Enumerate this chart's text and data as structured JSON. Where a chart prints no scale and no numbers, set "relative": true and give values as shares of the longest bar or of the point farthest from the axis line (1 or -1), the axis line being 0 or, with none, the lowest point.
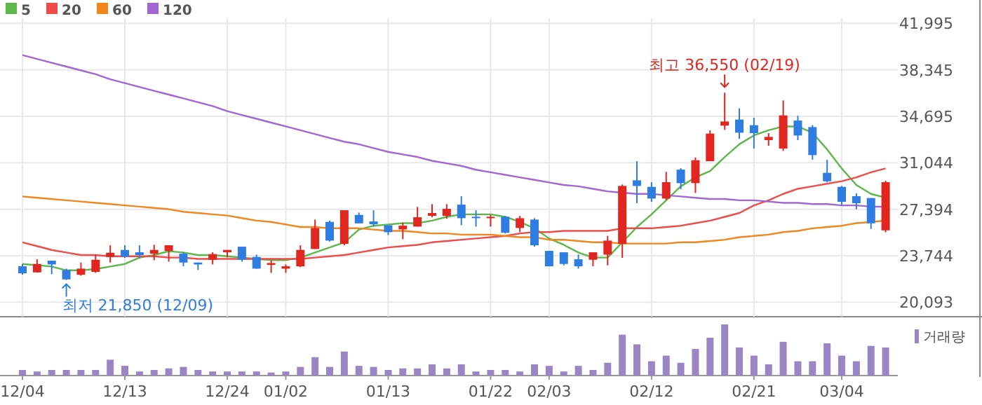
{
  "chart_data": [
    {
      "type": "candlestick",
      "categories": [
        "12/04",
        null,
        null,
        null,
        null,
        null,
        null,
        "12/13",
        null,
        null,
        null,
        null,
        null,
        null,
        "12/24",
        null,
        null,
        null,
        "01/02",
        null,
        null,
        null,
        null,
        null,
        null,
        "01/13",
        null,
        null,
        null,
        null,
        null,
        null,
        "01/22",
        null,
        null,
        null,
        "02/03",
        null,
        null,
        null,
        null,
        null,
        null,
        "02/12",
        null,
        null,
        null,
        null,
        null,
        null,
        "02/21",
        null,
        null,
        null,
        null,
        null,
        "03/04",
        null,
        null,
        null
      ],
      "ohlc": [
        [
          22916,
          23100,
          22255,
          22365
        ],
        [
          22438,
          23467,
          22438,
          23100
        ],
        [
          23357,
          23357,
          22292,
          23063
        ],
        [
          22622,
          22732,
          21850,
          21889
        ],
        [
          22250,
          23210,
          22182,
          22732
        ],
        [
          22475,
          23834,
          22402,
          23430
        ],
        [
          23650,
          24567,
          23210,
          23980
        ],
        [
          24200,
          24567,
          23577,
          23687
        ],
        [
          24017,
          24567,
          23540,
          23797
        ],
        [
          23907,
          24604,
          23394,
          24200
        ],
        [
          24127,
          24567,
          23283,
          24567
        ],
        [
          23907,
          24017,
          22916,
          23210
        ],
        [
          23210,
          23210,
          22622,
          23063
        ],
        [
          23430,
          24017,
          23063,
          23870
        ],
        [
          24017,
          24200,
          23614,
          24200
        ],
        [
          24457,
          24457,
          23283,
          23430
        ],
        [
          23650,
          23834,
          22732,
          22732
        ],
        [
          23026,
          23357,
          22402,
          23173
        ],
        [
          22732,
          23063,
          22402,
          22916
        ],
        [
          22916,
          24567,
          22843,
          24200
        ],
        [
          24274,
          26586,
          24274,
          25925
        ],
        [
          26402,
          26500,
          24860,
          24934
        ],
        [
          24677,
          27318,
          24567,
          27318
        ],
        [
          26952,
          27135,
          26291,
          26291
        ],
        [
          26438,
          27318,
          26035,
          26218
        ],
        [
          26145,
          26145,
          25375,
          25595
        ],
        [
          25815,
          26328,
          25045,
          26108
        ],
        [
          26035,
          27576,
          26035,
          26768
        ],
        [
          26878,
          27796,
          26768,
          27099
        ],
        [
          26878,
          27796,
          26658,
          27429
        ],
        [
          27759,
          28420,
          26145,
          26695
        ],
        [
          26805,
          27318,
          26035,
          26695
        ],
        [
          26695,
          26952,
          26035,
          26805
        ],
        [
          26805,
          26878,
          25485,
          25558
        ],
        [
          25925,
          26878,
          25595,
          26695
        ],
        [
          26585,
          26695,
          24457,
          24567
        ],
        [
          24127,
          24127,
          22916,
          22916
        ],
        [
          24017,
          24017,
          22990,
          23100
        ],
        [
          23467,
          23834,
          22732,
          22916
        ],
        [
          23430,
          24017,
          22916,
          24017
        ],
        [
          23834,
          25302,
          22990,
          24934
        ],
        [
          24677,
          29337,
          23577,
          29227
        ],
        [
          29668,
          31171,
          27869,
          29227
        ],
        [
          29154,
          29521,
          27979,
          28237
        ],
        [
          28237,
          30328,
          28126,
          29521
        ],
        [
          30511,
          30621,
          28971,
          29448
        ],
        [
          29448,
          31465,
          28677,
          31245
        ],
        [
          31171,
          33593,
          31171,
          33336
        ],
        [
          33960,
          36550,
          33630,
          34290
        ],
        [
          34437,
          35317,
          32933,
          33410
        ],
        [
          33996,
          34584,
          32162,
          33373
        ],
        [
          32823,
          33373,
          32383,
          33079
        ],
        [
          32162,
          35941,
          31978,
          34767
        ],
        [
          34364,
          34731,
          32823,
          33190
        ],
        [
          33850,
          33996,
          31281,
          31648
        ],
        [
          30254,
          31281,
          29521,
          29594
        ],
        [
          29154,
          29227,
          27686,
          27979
        ],
        [
          28420,
          28640,
          27392,
          27869
        ],
        [
          28273,
          28273,
          25852,
          26291
        ],
        [
          25742,
          29631,
          25595,
          29521
        ]
      ],
      "colors": [
        "#2f7de1",
        "#e0261f",
        "#2f7de1",
        "#2f7de1",
        "#e0261f",
        "#e0261f",
        "#e0261f",
        "#2f7de1",
        "#2f7de1",
        "#e0261f",
        "#e0261f",
        "#2f7de1",
        "#2f7de1",
        "#e0261f",
        "#e0261f",
        "#2f7de1",
        "#2f7de1",
        "#e0261f",
        "#e0261f",
        "#e0261f",
        "#e0261f",
        "#2f7de1",
        "#e0261f",
        "#2f7de1",
        "#2f7de1",
        "#2f7de1",
        "#e0261f",
        "#e0261f",
        "#e0261f",
        "#e0261f",
        "#2f7de1",
        "#2f7de1",
        "#e0261f",
        "#2f7de1",
        "#e0261f",
        "#2f7de1",
        "#2f7de1",
        "#2f7de1",
        "#2f7de1",
        "#e0261f",
        "#e0261f",
        "#e0261f",
        "#2f7de1",
        "#2f7de1",
        "#e0261f",
        "#2f7de1",
        "#e0261f",
        "#e0261f",
        "#e0261f",
        "#2f7de1",
        "#2f7de1",
        "#e0261f",
        "#e0261f",
        "#2f7de1",
        "#2f7de1",
        "#2f7de1",
        "#2f7de1",
        "#2f7de1",
        "#2f7de1",
        "#e0261f"
      ],
      "series": [
        {
          "type": "line",
          "name": "5",
          "color": "#5cb84a",
          "values": [
            23100,
            23000,
            22900,
            22600,
            22600,
            22700,
            22900,
            23100,
            23600,
            23800,
            24100,
            24000,
            23800,
            23800,
            23700,
            23600,
            23500,
            23400,
            23400,
            23600,
            24000,
            24400,
            24800,
            25800,
            26100,
            26200,
            26300,
            26300,
            26500,
            26800,
            27000,
            27000,
            27000,
            26800,
            26400,
            25900,
            25100,
            24600,
            24000,
            23600,
            23600,
            24800,
            26000,
            27000,
            28100,
            29200,
            29900,
            30400,
            31500,
            32500,
            33200,
            33600,
            33900,
            33900,
            33400,
            32100,
            30600,
            29300,
            28600,
            28300
          ]
        },
        {
          "type": "line",
          "name": "20",
          "color": "#ef4b4b",
          "values": [
            24800,
            24500,
            24200,
            24000,
            23800,
            23800,
            23700,
            23700,
            23700,
            23700,
            23600,
            23600,
            23500,
            23500,
            23500,
            23500,
            23500,
            23500,
            23500,
            23500,
            23600,
            23700,
            23800,
            24000,
            24200,
            24400,
            24500,
            24600,
            24800,
            24900,
            25000,
            25100,
            25200,
            25300,
            25500,
            25600,
            25600,
            25700,
            25700,
            25700,
            25700,
            25900,
            25900,
            25900,
            26000,
            26100,
            26300,
            26500,
            26800,
            27100,
            27700,
            28100,
            28600,
            29000,
            29200,
            29400,
            29600,
            29900,
            30300,
            30600
          ]
        },
        {
          "type": "line",
          "name": "60",
          "color": "#f0861c",
          "values": [
            28400,
            28300,
            28200,
            28100,
            28000,
            27900,
            27800,
            27700,
            27600,
            27500,
            27400,
            27200,
            27100,
            27000,
            26900,
            26700,
            26500,
            26400,
            26200,
            26000,
            26000,
            25900,
            25900,
            25900,
            25800,
            25700,
            25700,
            25600,
            25500,
            25500,
            25400,
            25400,
            25400,
            25300,
            25200,
            25200,
            25000,
            25000,
            24900,
            24800,
            24800,
            24700,
            24700,
            24700,
            24700,
            24800,
            24800,
            24900,
            25000,
            25200,
            25300,
            25400,
            25600,
            25700,
            25900,
            26000,
            26100,
            26300,
            26400,
            26500
          ]
        },
        {
          "type": "line",
          "name": "120",
          "color": "#a066d3",
          "values": [
            39500,
            39200,
            38900,
            38600,
            38300,
            38000,
            37600,
            37300,
            37000,
            36700,
            36400,
            36100,
            35800,
            35500,
            35100,
            34800,
            34500,
            34200,
            33900,
            33600,
            33300,
            33000,
            32700,
            32500,
            32200,
            31900,
            31700,
            31500,
            31200,
            31000,
            30800,
            30500,
            30300,
            30100,
            29900,
            29700,
            29500,
            29300,
            29200,
            29000,
            28800,
            28700,
            28600,
            28600,
            28500,
            28400,
            28300,
            28200,
            28200,
            28100,
            28100,
            28000,
            27900,
            27900,
            27800,
            27800,
            27700,
            27700,
            27600,
            27600
          ]
        }
      ],
      "ylim": [
        19100,
        42200
      ],
      "yticks": [
        {
          "value": 20093,
          "label": "20,093"
        },
        {
          "value": 23744,
          "label": "23,744"
        },
        {
          "value": 27394,
          "label": "27,394"
        },
        {
          "value": 31044,
          "label": "31,044"
        },
        {
          "value": 34695,
          "label": "34,695"
        },
        {
          "value": 38345,
          "label": "38,345"
        },
        {
          "value": 41995,
          "label": "41,995"
        }
      ],
      "grid": true,
      "legend": "top left",
      "annotations": [
        "최고 36,550 (02/19)",
        "최저 21,850 (12/09)"
      ]
    },
    {
      "type": "bar",
      "relative": true,
      "categories": [
        null,
        null,
        null,
        null,
        null,
        null,
        null,
        null,
        null,
        null,
        null,
        null,
        null,
        null,
        null,
        null,
        null,
        null,
        null,
        null,
        null,
        null,
        null,
        null,
        null,
        null,
        null,
        null,
        null,
        null,
        null,
        null,
        null,
        null,
        null,
        null,
        null,
        null,
        null,
        null,
        null,
        null,
        null,
        null,
        null,
        null,
        null,
        null,
        null,
        null,
        null,
        null,
        null,
        null,
        null,
        null,
        null,
        null,
        null,
        null
      ],
      "series": [
        {
          "name": "거래량",
          "color": "#9b86c5",
          "values": [
            0.11,
            0.08,
            0.11,
            0.11,
            0.11,
            0.11,
            0.31,
            0.19,
            0.08,
            0.11,
            0.14,
            0.17,
            0.11,
            0.08,
            0.08,
            0.08,
            0.08,
            0.06,
            0.08,
            0.17,
            0.36,
            0.17,
            0.47,
            0.19,
            0.17,
            0.11,
            0.14,
            0.14,
            0.22,
            0.14,
            0.22,
            0.08,
            0.11,
            0.11,
            0.08,
            0.22,
            0.19,
            0.08,
            0.19,
            0.11,
            0.25,
            0.8,
            0.61,
            0.28,
            0.39,
            0.25,
            0.52,
            0.74,
            1,
            0.55,
            0.39,
            0.22,
            0.66,
            0.28,
            0.28,
            0.63,
            0.39,
            0.28,
            0.58,
            0.55
          ]
        }
      ],
      "legend": "top right"
    }
  ]
}
